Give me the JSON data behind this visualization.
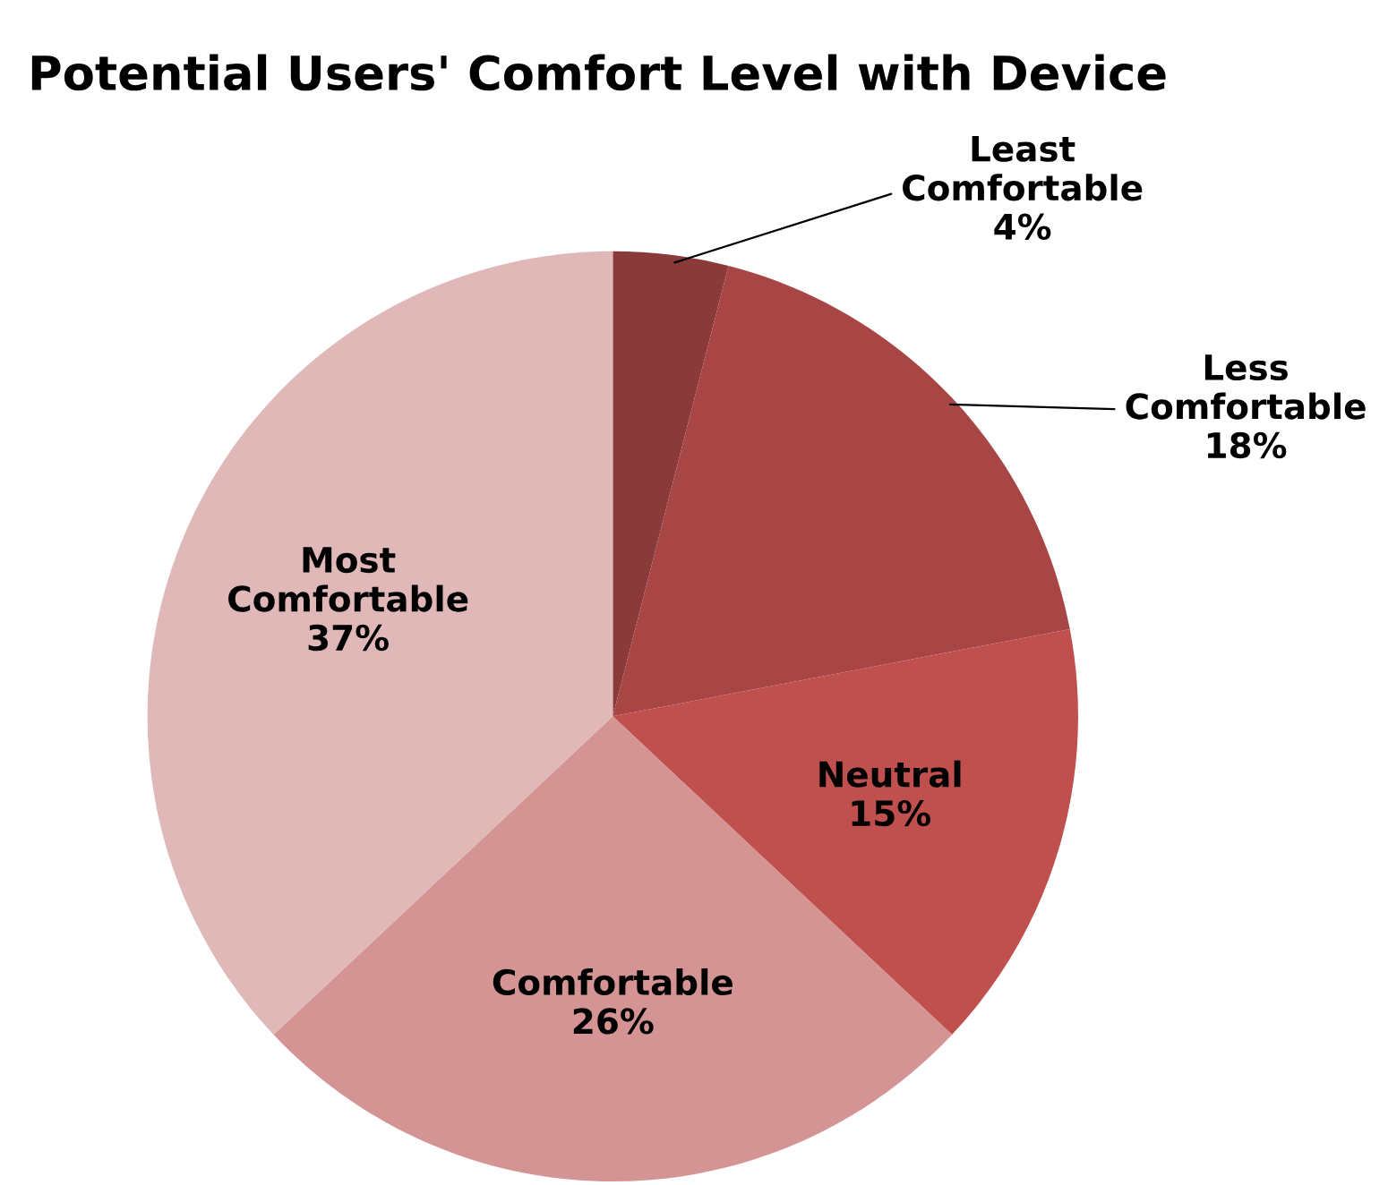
{
  "chart_data": {
    "type": "pie",
    "title": "Potential Users' Comfort Level with Device",
    "categories": [
      "Least Comfortable",
      "Less Comfortable",
      "Neutral",
      "Comfortable",
      "Most Comfortable"
    ],
    "values": [
      4,
      18,
      15,
      26,
      37
    ],
    "colors": [
      "#8b3a3a",
      "#a84646",
      "#c0504d",
      "#d49493",
      "#e0b8b8"
    ],
    "value_labels": [
      "4%",
      "18%",
      "15%",
      "26%",
      "37%"
    ],
    "legend": false
  }
}
